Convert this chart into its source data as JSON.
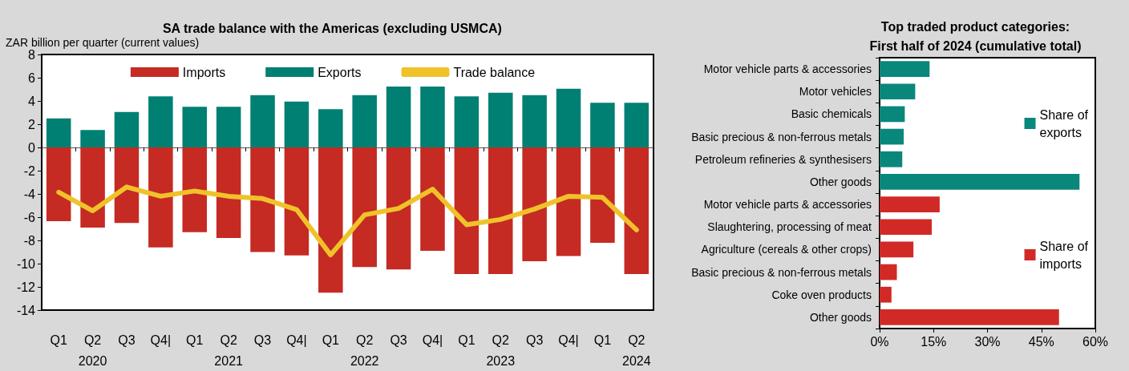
{
  "chart_data": [
    {
      "type": "bar",
      "title": "SA trade balance with the Americas (excluding USMCA)",
      "ylabel": "ZAR billion per quarter (current values)",
      "categories": [
        "Q1",
        "Q2\n2020",
        "Q3",
        "Q4|",
        "Q1",
        "Q2\n2021",
        "Q3",
        "Q4|",
        "Q1",
        "Q2\n2022",
        "Q3",
        "Q4|",
        "Q1",
        "Q2\n2023",
        "Q3",
        "Q4|",
        "Q1",
        "Q2\n2024"
      ],
      "series": [
        {
          "name": "Imports",
          "color": "#c52a23",
          "values": [
            -6.35,
            -6.9,
            -6.5,
            -8.6,
            -7.3,
            -7.8,
            -9.0,
            -9.3,
            -12.5,
            -10.3,
            -10.5,
            -8.9,
            -10.9,
            -10.9,
            -9.8,
            -9.35,
            -8.2,
            -10.9
          ]
        },
        {
          "name": "Exports",
          "color": "#007f73",
          "values": [
            2.5,
            1.5,
            3.05,
            4.4,
            3.5,
            3.5,
            4.5,
            3.95,
            3.3,
            4.5,
            5.25,
            5.25,
            4.4,
            4.7,
            4.5,
            5.05,
            3.85,
            3.85
          ]
        },
        {
          "name": "Trade balance",
          "type": "line",
          "color": "#f0c22a",
          "values": [
            -3.85,
            -5.45,
            -3.4,
            -4.2,
            -3.75,
            -4.2,
            -4.4,
            -5.35,
            -9.25,
            -5.8,
            -5.25,
            -3.6,
            -6.65,
            -6.2,
            -5.3,
            -4.2,
            -4.3,
            -7.1
          ]
        }
      ],
      "stacked": true,
      "ylim": [
        -14,
        8
      ],
      "yticks": [
        -14,
        -12,
        -10,
        -8,
        -6,
        -4,
        -2,
        0,
        2,
        4,
        6,
        8
      ],
      "legend": "top",
      "marker": "none"
    },
    {
      "type": "bar",
      "orientation": "horizontal",
      "title": "Top traded product categories:\nFirst half of 2024 (cumulative total)",
      "categories": [
        "Motor vehicle parts & accessories",
        "Motor vehicles",
        "Basic chemicals",
        "Basic precious & non-ferrous metals",
        "Petroleum refineries & synthesisers",
        "Other goods",
        "Motor vehicle parts & accessories",
        "Slaughtering, processing of meat",
        "Agriculture (cereals & other crops)",
        "Basic precious & non-ferrous metals",
        "Coke oven products",
        "Other goods"
      ],
      "series": [
        {
          "name": "Share of\nexports",
          "color": "#0a877b",
          "values": [
            13.9,
            9.9,
            7.0,
            6.7,
            6.3,
            55.6,
            null,
            null,
            null,
            null,
            null,
            null
          ]
        },
        {
          "name": "Share of\nimports",
          "color": "#d12a26",
          "values": [
            null,
            null,
            null,
            null,
            null,
            null,
            16.7,
            14.5,
            9.4,
            4.8,
            3.3,
            49.9
          ]
        }
      ],
      "xlim": [
        0,
        60
      ],
      "xticks": [
        {
          "value": 0,
          "label": "0%"
        },
        {
          "value": 15,
          "label": "15%"
        },
        {
          "value": 30,
          "label": "30%"
        },
        {
          "value": 45,
          "label": "45%"
        },
        {
          "value": 60,
          "label": "60%"
        }
      ],
      "legend": "right"
    }
  ]
}
